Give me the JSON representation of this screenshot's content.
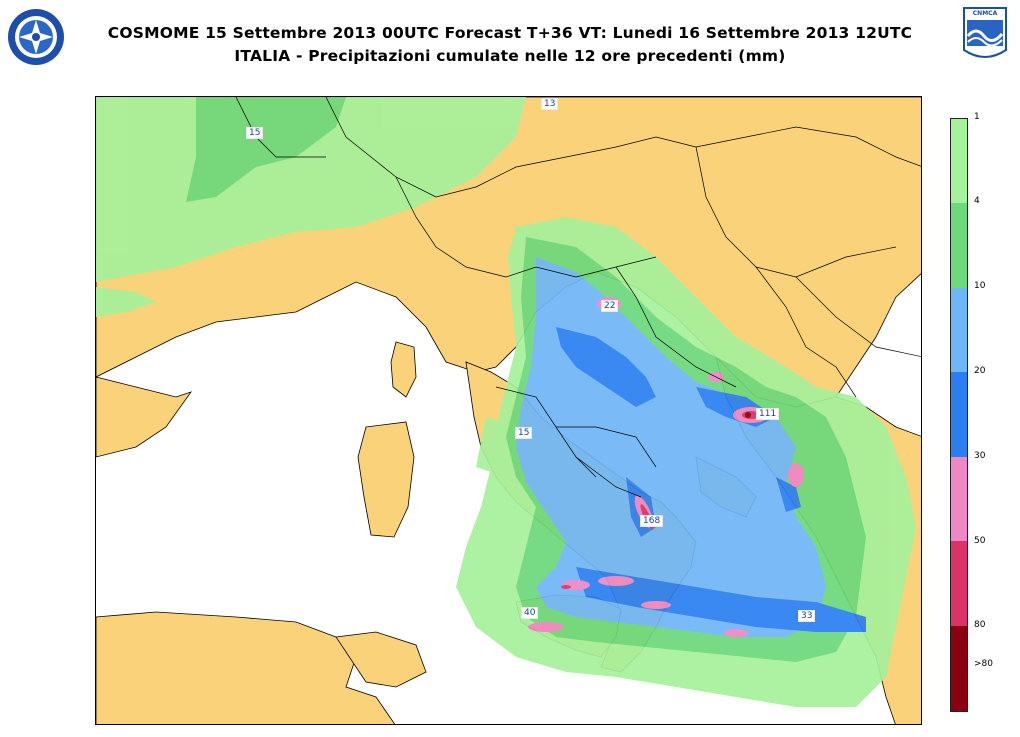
{
  "title": {
    "line1": "COSMOME 15 Settembre 2013 00UTC Forecast T+36 VT: Lunedi 16 Settembre 2013 12UTC",
    "line2": "ITALIA - Precipitazioni cumulate nelle 12 ore precedenti (mm)"
  },
  "logos": {
    "left": "round-seal-logo",
    "right_text": "CNMCA"
  },
  "map_labels": [
    {
      "text": "15"
    },
    {
      "text": "13"
    },
    {
      "text": "22"
    },
    {
      "text": "111"
    },
    {
      "text": "15"
    },
    {
      "text": "168"
    },
    {
      "text": "40"
    },
    {
      "text": "33"
    }
  ],
  "legend": {
    "ticks": [
      "1",
      "4",
      "10",
      "20",
      "30",
      "50",
      "80",
      ">80"
    ],
    "colors": [
      "#a6f19b",
      "#6cd97c",
      "#6fb6f7",
      "#2a7ef0",
      "#ef86c5",
      "#d9336a",
      "#8b0010"
    ]
  },
  "colors": {
    "land": "#f9d27a",
    "sea": "#ffffff",
    "light_green": "#a6f19b",
    "green": "#6cd97c",
    "light_blue": "#6fb6f7",
    "blue": "#2a7ef0",
    "pink": "#ef86c5",
    "magenta": "#d9336a",
    "dark_red": "#8b0010"
  }
}
